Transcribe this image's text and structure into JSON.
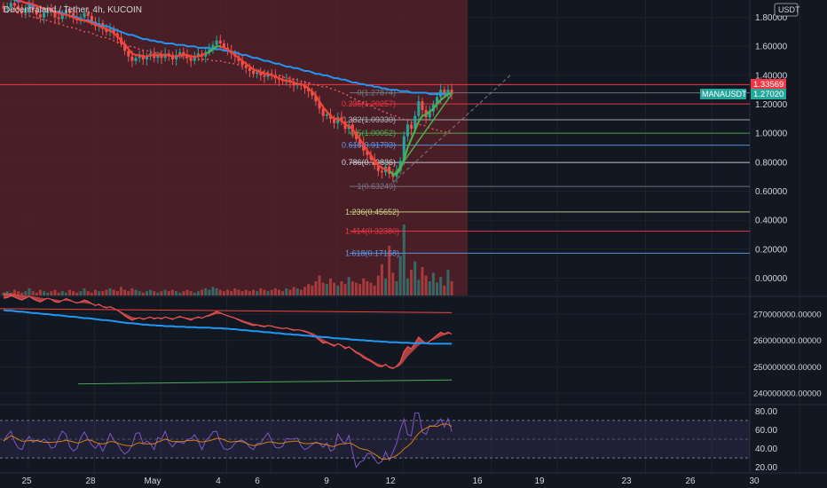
{
  "header": {
    "title": "Decentraland / Tether, 4h, KUCOIN",
    "currency_badge": "USDT"
  },
  "price_tags": {
    "marker_price": "1.33569",
    "symbol": "MANAUSDT",
    "last_price": "1.27020"
  },
  "colors": {
    "background": "#131722",
    "red_zone": "#5e2228",
    "up": "#26a69a",
    "down": "#ef5350",
    "ma_blue": "#2196f3",
    "ma_red": "#f44336",
    "ma_green": "#4caf50",
    "grid": "#1e222d"
  },
  "chart_data": {
    "type": "line",
    "price_axis": {
      "ylim": [
        -0.12,
        1.92
      ],
      "ticks": [
        1.8,
        1.6,
        1.4,
        1.2,
        1.0,
        0.8,
        0.6,
        0.4,
        0.2,
        0.0
      ],
      "tick_labels": [
        "1.80000",
        "1.60000",
        "1.40000",
        "1.20000",
        "1.00000",
        "0.80000",
        "0.60000",
        "0.40000",
        "0.20000",
        "0.00000"
      ]
    },
    "time_axis": {
      "ticks": [
        {
          "label": "25",
          "idx": 0
        },
        {
          "label": "28",
          "idx": 18
        },
        {
          "label": "May",
          "idx": 36
        },
        {
          "label": "4",
          "idx": 54
        },
        {
          "label": "6",
          "idx": 66
        },
        {
          "label": "9",
          "idx": 84
        },
        {
          "label": "12",
          "idx": 102
        },
        {
          "label": "16",
          "idx": 126
        },
        {
          "label": "19",
          "idx": 144
        },
        {
          "label": "23",
          "idx": 168
        },
        {
          "label": "26",
          "idx": 186
        },
        {
          "label": "30",
          "idx": 210
        }
      ]
    },
    "fib_levels": [
      {
        "label": "0(1.27874)",
        "value": 1.27874,
        "color": "#787b86"
      },
      {
        "label": "0.236(1.20257)",
        "value": 1.20257,
        "color": "#f23645"
      },
      {
        "label": "0.382(1.09330)",
        "value": 1.0933,
        "color": "#b2b5be"
      },
      {
        "label": "0.5(1.00052)",
        "value": 1.00052,
        "color": "#4caf50"
      },
      {
        "label": "0.618(0.91793)",
        "value": 0.91793,
        "color": "#5d9cec"
      },
      {
        "label": "0.786(0.79836)",
        "value": 0.79836,
        "color": "#d1d4dc"
      },
      {
        "label": "1(0.63249)",
        "value": 0.63249,
        "color": "#787b86"
      },
      {
        "label": "1.236(0.45652)",
        "value": 0.45652,
        "color": "#c9d38a"
      },
      {
        "label": "1.414(0.32380)",
        "value": 0.3238,
        "color": "#f23645"
      },
      {
        "label": "1.618(0.17168)",
        "value": 0.17168,
        "color": "#5d9cec"
      }
    ],
    "close_series": [
      1.86,
      1.87,
      1.9,
      1.88,
      1.85,
      1.83,
      1.86,
      1.89,
      1.85,
      1.82,
      1.8,
      1.83,
      1.86,
      1.84,
      1.8,
      1.79,
      1.82,
      1.85,
      1.83,
      1.8,
      1.78,
      1.8,
      1.83,
      1.81,
      1.77,
      1.74,
      1.76,
      1.72,
      1.7,
      1.72,
      1.69,
      1.66,
      1.62,
      1.57,
      1.53,
      1.5,
      1.52,
      1.54,
      1.51,
      1.53,
      1.55,
      1.52,
      1.54,
      1.52,
      1.55,
      1.53,
      1.51,
      1.54,
      1.56,
      1.54,
      1.52,
      1.5,
      1.53,
      1.55,
      1.53,
      1.56,
      1.58,
      1.61,
      1.64,
      1.62,
      1.59,
      1.57,
      1.55,
      1.53,
      1.5,
      1.47,
      1.45,
      1.43,
      1.41,
      1.42,
      1.4,
      1.39,
      1.41,
      1.4,
      1.38,
      1.37,
      1.36,
      1.37,
      1.35,
      1.33,
      1.34,
      1.33,
      1.31,
      1.29,
      1.26,
      1.22,
      1.17,
      1.12,
      1.13,
      1.1,
      1.07,
      1.11,
      1.08,
      1.03,
      1.06,
      1.01,
      0.96,
      0.93,
      0.88,
      0.85,
      0.82,
      0.78,
      0.74,
      0.73,
      0.77,
      0.72,
      0.7,
      0.74,
      0.81,
      0.98,
      1.06,
      1.03,
      1.12,
      1.22,
      1.16,
      1.11,
      1.15,
      1.2,
      1.25,
      1.3,
      1.27,
      1.3,
      1.27
    ],
    "ma_blue": [
      1.94,
      1.93,
      1.93,
      1.92,
      1.91,
      1.91,
      1.9,
      1.89,
      1.88,
      1.88,
      1.87,
      1.86,
      1.86,
      1.85,
      1.84,
      1.84,
      1.83,
      1.82,
      1.81,
      1.81,
      1.8,
      1.79,
      1.78,
      1.78,
      1.77,
      1.76,
      1.75,
      1.74,
      1.74,
      1.73,
      1.72,
      1.71,
      1.7,
      1.69,
      1.68,
      1.68,
      1.67,
      1.66,
      1.65,
      1.65,
      1.64,
      1.64,
      1.63,
      1.63,
      1.62,
      1.62,
      1.62,
      1.61,
      1.61,
      1.61,
      1.6,
      1.6,
      1.6,
      1.59,
      1.59,
      1.59,
      1.59,
      1.58,
      1.58,
      1.58,
      1.57,
      1.57,
      1.56,
      1.56,
      1.55,
      1.54,
      1.54,
      1.53,
      1.52,
      1.52,
      1.51,
      1.5,
      1.5,
      1.49,
      1.48,
      1.48,
      1.47,
      1.46,
      1.46,
      1.45,
      1.45,
      1.44,
      1.43,
      1.43,
      1.42,
      1.41,
      1.41,
      1.4,
      1.4,
      1.39,
      1.38,
      1.38,
      1.37,
      1.37,
      1.36,
      1.35,
      1.35,
      1.34,
      1.34,
      1.33,
      1.33,
      1.32,
      1.32,
      1.31,
      1.31,
      1.3,
      1.3,
      1.3,
      1.29,
      1.29,
      1.29,
      1.28,
      1.28,
      1.28,
      1.28,
      1.28,
      1.27,
      1.27,
      1.27,
      1.27,
      1.27,
      1.27,
      1.27
    ],
    "ma_red": [
      1.95,
      1.94,
      1.94,
      1.93,
      1.92,
      1.91,
      1.9,
      1.9,
      1.89,
      1.88,
      1.87,
      1.86,
      1.86,
      1.85,
      1.84,
      1.83,
      1.82,
      1.82,
      1.81,
      1.8,
      1.79,
      1.78,
      1.78,
      1.77,
      1.76,
      1.75,
      1.74,
      1.73,
      1.72,
      1.71,
      1.69,
      1.67,
      1.64,
      1.61,
      1.58,
      1.55,
      1.54,
      1.54,
      1.53,
      1.53,
      1.54,
      1.54,
      1.54,
      1.54,
      1.54,
      1.54,
      1.53,
      1.53,
      1.54,
      1.54,
      1.54,
      1.53,
      1.53,
      1.53,
      1.54,
      1.55,
      1.56,
      1.58,
      1.6,
      1.6,
      1.59,
      1.58,
      1.56,
      1.54,
      1.52,
      1.5,
      1.48,
      1.46,
      1.44,
      1.43,
      1.42,
      1.41,
      1.41,
      1.4,
      1.39,
      1.38,
      1.37,
      1.36,
      1.36,
      1.35,
      1.34,
      1.34,
      1.33,
      1.31,
      1.29,
      1.26,
      1.22,
      1.18,
      1.15,
      1.12,
      1.1,
      1.1,
      1.09,
      1.06,
      1.05,
      1.03,
      0.99,
      0.96,
      0.92,
      0.88,
      0.85,
      0.81,
      0.78,
      0.76,
      0.75,
      0.74,
      0.72,
      0.72,
      0.75,
      0.82,
      0.9,
      0.96,
      1.02,
      1.08,
      1.12,
      1.13,
      1.15,
      1.17,
      1.2,
      1.23,
      1.25,
      1.27,
      1.28
    ],
    "volume": [
      2,
      3,
      2,
      4,
      3,
      2,
      3,
      5,
      3,
      2,
      4,
      3,
      2,
      3,
      4,
      2,
      3,
      2,
      4,
      3,
      2,
      3,
      5,
      3,
      2,
      4,
      3,
      3,
      4,
      5,
      4,
      3,
      6,
      4,
      3,
      5,
      4,
      3,
      2,
      3,
      4,
      3,
      2,
      3,
      4,
      3,
      4,
      3,
      2,
      3,
      4,
      3,
      2,
      3,
      4,
      5,
      4,
      6,
      5,
      4,
      3,
      4,
      3,
      5,
      4,
      3,
      4,
      3,
      4,
      3,
      5,
      4,
      3,
      4,
      5,
      4,
      3,
      5,
      4,
      6,
      5,
      4,
      6,
      8,
      7,
      10,
      14,
      9,
      8,
      12,
      9,
      7,
      10,
      8,
      13,
      10,
      9,
      8,
      12,
      10,
      9,
      7,
      14,
      22,
      12,
      35,
      16,
      10,
      28,
      50,
      12,
      18,
      24,
      11,
      20,
      14,
      10,
      16,
      9,
      13,
      7,
      18,
      10
    ],
    "indicator_mid": {
      "ticks": [
        270000000,
        260000000,
        250000000,
        240000000
      ],
      "tick_labels": [
        "270000000.00000",
        "260000000.00000",
        "250000000.00000",
        "240000000.00000"
      ]
    },
    "rsi": {
      "ticks": [
        80,
        60,
        40,
        20
      ],
      "tick_labels": [
        "80.00",
        "60.00",
        "40.00",
        "20.00"
      ],
      "band": [
        30,
        70
      ]
    }
  }
}
